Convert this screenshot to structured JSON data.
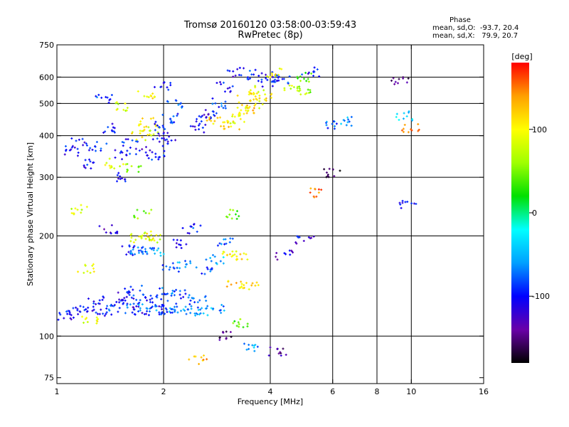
{
  "title": {
    "line1": "Tromsø 20160120 03:58:00-03:59:43",
    "line2": "RwPretec (8p)"
  },
  "phase_box": {
    "title": "Phase",
    "line1": "mean, sd,O:  -93.7, 20.4",
    "line2": "mean, sd,X:   79.9, 20.7"
  },
  "colorbar": {
    "unit": "[deg]",
    "ticks": [
      {
        "value": 100,
        "label": "100"
      },
      {
        "value": 0,
        "label": "0"
      },
      {
        "value": -100,
        "label": "-100"
      }
    ],
    "range": [
      -180,
      180
    ],
    "colors": [
      "#000000",
      "#6a00a8",
      "#0000ff",
      "#00a0ff",
      "#00ffff",
      "#00e000",
      "#a0ff00",
      "#ffff00",
      "#ffa000",
      "#ff0000"
    ]
  },
  "chart_data": {
    "type": "scatter",
    "xlabel": "Frequency [MHz]",
    "ylabel": "Stationary phase Virtual Height [km]",
    "xscale": "log",
    "yscale": "log",
    "xlim": [
      1,
      16
    ],
    "ylim": [
      72,
      750
    ],
    "xticks": [
      1,
      2,
      4,
      6,
      8,
      10,
      16
    ],
    "yticks": [
      75,
      100,
      200,
      300,
      400,
      500,
      600,
      750
    ],
    "grid_x": [
      2,
      4,
      6,
      8,
      10
    ],
    "grid_y": [
      100,
      200,
      300,
      400,
      500,
      600
    ],
    "point_groups": [
      {
        "x": 1.05,
        "y": 115,
        "phase": -110
      },
      {
        "x": 1.1,
        "y": 118,
        "phase": -95
      },
      {
        "x": 1.2,
        "y": 120,
        "phase": -100
      },
      {
        "x": 1.25,
        "y": 113,
        "phase": 90
      },
      {
        "x": 1.35,
        "y": 118,
        "phase": -105
      },
      {
        "x": 1.45,
        "y": 120,
        "phase": -90
      },
      {
        "x": 1.5,
        "y": 126,
        "phase": -100
      },
      {
        "x": 1.6,
        "y": 121,
        "phase": -85
      },
      {
        "x": 1.7,
        "y": 119,
        "phase": -110
      },
      {
        "x": 1.8,
        "y": 122,
        "phase": -60
      },
      {
        "x": 1.9,
        "y": 118,
        "phase": -90
      },
      {
        "x": 2.0,
        "y": 120,
        "phase": -100
      },
      {
        "x": 2.1,
        "y": 121,
        "phase": -80
      },
      {
        "x": 2.2,
        "y": 119,
        "phase": -60
      },
      {
        "x": 2.4,
        "y": 120,
        "phase": -70
      },
      {
        "x": 2.6,
        "y": 119,
        "phase": -50
      },
      {
        "x": 2.8,
        "y": 120,
        "phase": -60
      },
      {
        "x": 1.3,
        "y": 128,
        "phase": -100
      },
      {
        "x": 1.55,
        "y": 132,
        "phase": -110
      },
      {
        "x": 1.65,
        "y": 137,
        "phase": -95
      },
      {
        "x": 1.75,
        "y": 130,
        "phase": -100
      },
      {
        "x": 1.95,
        "y": 130,
        "phase": -90
      },
      {
        "x": 2.05,
        "y": 135,
        "phase": -80
      },
      {
        "x": 2.3,
        "y": 133,
        "phase": -85
      },
      {
        "x": 2.5,
        "y": 128,
        "phase": -70
      },
      {
        "x": 1.6,
        "y": 180,
        "phase": -90
      },
      {
        "x": 1.7,
        "y": 181,
        "phase": -70
      },
      {
        "x": 1.8,
        "y": 180,
        "phase": -80
      },
      {
        "x": 1.9,
        "y": 180,
        "phase": -60
      },
      {
        "x": 1.7,
        "y": 198,
        "phase": 90
      },
      {
        "x": 1.78,
        "y": 200,
        "phase": 100
      },
      {
        "x": 1.85,
        "y": 197,
        "phase": 80
      },
      {
        "x": 2.1,
        "y": 160,
        "phase": -90
      },
      {
        "x": 2.3,
        "y": 165,
        "phase": -60
      },
      {
        "x": 2.6,
        "y": 158,
        "phase": -80
      },
      {
        "x": 2.8,
        "y": 170,
        "phase": -50
      },
      {
        "x": 3.1,
        "y": 178,
        "phase": 100
      },
      {
        "x": 3.3,
        "y": 175,
        "phase": 110
      },
      {
        "x": 3.2,
        "y": 142,
        "phase": 120
      },
      {
        "x": 3.5,
        "y": 140,
        "phase": 110
      },
      {
        "x": 3.1,
        "y": 232,
        "phase": 40
      },
      {
        "x": 1.75,
        "y": 232,
        "phase": 60
      },
      {
        "x": 1.1,
        "y": 360,
        "phase": -100
      },
      {
        "x": 1.15,
        "y": 380,
        "phase": -110
      },
      {
        "x": 1.25,
        "y": 330,
        "phase": -100
      },
      {
        "x": 1.3,
        "y": 370,
        "phase": -90
      },
      {
        "x": 1.4,
        "y": 420,
        "phase": -100
      },
      {
        "x": 1.45,
        "y": 330,
        "phase": 90
      },
      {
        "x": 1.5,
        "y": 300,
        "phase": -110
      },
      {
        "x": 1.55,
        "y": 350,
        "phase": -100
      },
      {
        "x": 1.6,
        "y": 380,
        "phase": -95
      },
      {
        "x": 1.65,
        "y": 320,
        "phase": 60
      },
      {
        "x": 1.7,
        "y": 400,
        "phase": 100
      },
      {
        "x": 1.75,
        "y": 360,
        "phase": -110
      },
      {
        "x": 1.8,
        "y": 440,
        "phase": 110
      },
      {
        "x": 1.85,
        "y": 410,
        "phase": 90
      },
      {
        "x": 1.9,
        "y": 350,
        "phase": -90
      },
      {
        "x": 1.95,
        "y": 380,
        "phase": -100
      },
      {
        "x": 2.0,
        "y": 430,
        "phase": -95
      },
      {
        "x": 2.05,
        "y": 400,
        "phase": -110
      },
      {
        "x": 2.1,
        "y": 450,
        "phase": -90
      },
      {
        "x": 2.15,
        "y": 500,
        "phase": -80
      },
      {
        "x": 2.0,
        "y": 560,
        "phase": -100
      },
      {
        "x": 1.35,
        "y": 520,
        "phase": -90
      },
      {
        "x": 1.55,
        "y": 490,
        "phase": 80
      },
      {
        "x": 1.8,
        "y": 530,
        "phase": 100
      },
      {
        "x": 2.5,
        "y": 420,
        "phase": -100
      },
      {
        "x": 2.6,
        "y": 450,
        "phase": -110
      },
      {
        "x": 2.7,
        "y": 470,
        "phase": -100
      },
      {
        "x": 2.8,
        "y": 440,
        "phase": 120
      },
      {
        "x": 2.9,
        "y": 500,
        "phase": -90
      },
      {
        "x": 3.0,
        "y": 560,
        "phase": -100
      },
      {
        "x": 3.1,
        "y": 430,
        "phase": 110
      },
      {
        "x": 3.2,
        "y": 450,
        "phase": 90
      },
      {
        "x": 3.3,
        "y": 470,
        "phase": 100
      },
      {
        "x": 3.4,
        "y": 520,
        "phase": 110
      },
      {
        "x": 3.5,
        "y": 480,
        "phase": 120
      },
      {
        "x": 3.6,
        "y": 500,
        "phase": 100
      },
      {
        "x": 3.7,
        "y": 550,
        "phase": 90
      },
      {
        "x": 3.8,
        "y": 520,
        "phase": 110
      },
      {
        "x": 3.9,
        "y": 580,
        "phase": -100
      },
      {
        "x": 4.0,
        "y": 600,
        "phase": -110
      },
      {
        "x": 4.1,
        "y": 620,
        "phase": 100
      },
      {
        "x": 4.3,
        "y": 590,
        "phase": -90
      },
      {
        "x": 4.6,
        "y": 560,
        "phase": 80
      },
      {
        "x": 4.9,
        "y": 550,
        "phase": 60
      },
      {
        "x": 5.0,
        "y": 600,
        "phase": 40
      },
      {
        "x": 5.2,
        "y": 620,
        "phase": -100
      },
      {
        "x": 3.2,
        "y": 620,
        "phase": -110
      },
      {
        "x": 3.6,
        "y": 610,
        "phase": -90
      },
      {
        "x": 1.4,
        "y": 210,
        "phase": -120
      },
      {
        "x": 1.2,
        "y": 160,
        "phase": 100
      },
      {
        "x": 1.15,
        "y": 240,
        "phase": 80
      },
      {
        "x": 2.2,
        "y": 190,
        "phase": -110
      },
      {
        "x": 2.4,
        "y": 210,
        "phase": -90
      },
      {
        "x": 3.0,
        "y": 190,
        "phase": -80
      },
      {
        "x": 3.3,
        "y": 110,
        "phase": 40
      },
      {
        "x": 3.0,
        "y": 100,
        "phase": -150
      },
      {
        "x": 2.5,
        "y": 85,
        "phase": 130
      },
      {
        "x": 3.5,
        "y": 93,
        "phase": -60
      },
      {
        "x": 4.2,
        "y": 90,
        "phase": -140
      },
      {
        "x": 4.4,
        "y": 175,
        "phase": -120
      },
      {
        "x": 5.0,
        "y": 195,
        "phase": -110
      },
      {
        "x": 5.3,
        "y": 270,
        "phase": 150
      },
      {
        "x": 6.0,
        "y": 310,
        "phase": -170
      },
      {
        "x": 6.0,
        "y": 430,
        "phase": -80
      },
      {
        "x": 6.7,
        "y": 440,
        "phase": -60
      },
      {
        "x": 9.3,
        "y": 590,
        "phase": -150
      },
      {
        "x": 9.6,
        "y": 460,
        "phase": -40
      },
      {
        "x": 9.8,
        "y": 250,
        "phase": -110
      },
      {
        "x": 10.0,
        "y": 420,
        "phase": 150
      }
    ]
  }
}
